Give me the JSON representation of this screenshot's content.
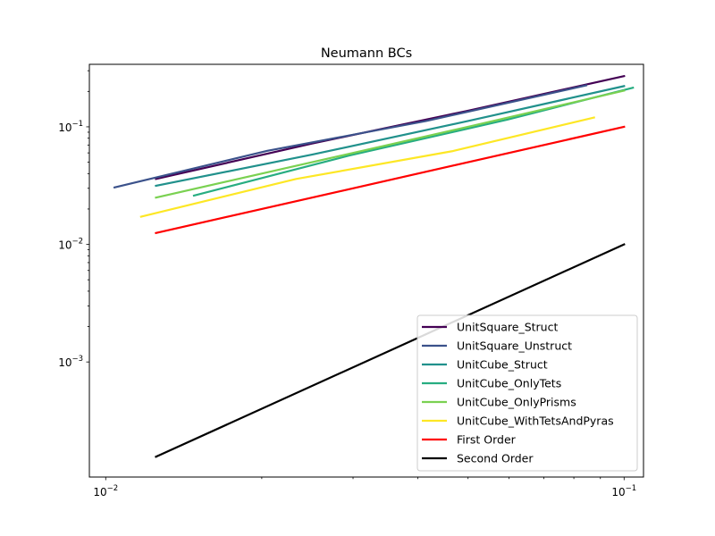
{
  "chart_data": {
    "type": "line",
    "title": "Neumann BCs",
    "xscale": "log",
    "yscale": "log",
    "xlim": [
      0.0093,
      0.109
    ],
    "ylim": [
      0.000105,
      0.34
    ],
    "xlabel": "",
    "ylabel": "",
    "x_major_ticks": [
      {
        "value": 0.01,
        "label_base": "10",
        "label_exp": "−2"
      },
      {
        "value": 0.1,
        "label_base": "10",
        "label_exp": "−1"
      }
    ],
    "y_major_ticks": [
      {
        "value": 0.001,
        "label_base": "10",
        "label_exp": "−3"
      },
      {
        "value": 0.01,
        "label_base": "10",
        "label_exp": "−2"
      },
      {
        "value": 0.1,
        "label_base": "10",
        "label_exp": "−1"
      }
    ],
    "legend_position": "lower-right",
    "series": [
      {
        "name": "UnitSquare_Struct",
        "color": "#440154",
        "x": [
          0.0125,
          0.025,
          0.05,
          0.1
        ],
        "y": [
          0.036,
          0.072,
          0.137,
          0.27
        ]
      },
      {
        "name": "UnitSquare_Unstruct",
        "color": "#3b528b",
        "x": [
          0.0104,
          0.0205,
          0.0415,
          0.0845
        ],
        "y": [
          0.0305,
          0.0625,
          0.112,
          0.225
        ]
      },
      {
        "name": "UnitCube_Struct",
        "color": "#21918c",
        "x": [
          0.0125,
          0.025,
          0.05,
          0.1
        ],
        "y": [
          0.0315,
          0.058,
          0.112,
          0.222
        ]
      },
      {
        "name": "UnitCube_OnlyTets",
        "color": "#27ad81",
        "x": [
          0.0148,
          0.0295,
          0.0595,
          0.104
        ],
        "y": [
          0.026,
          0.057,
          0.115,
          0.215
        ]
      },
      {
        "name": "UnitCube_OnlyPrisms",
        "color": "#7ad151",
        "x": [
          0.0125,
          0.025,
          0.05,
          0.1
        ],
        "y": [
          0.025,
          0.05,
          0.1,
          0.203
        ]
      },
      {
        "name": "UnitCube_WithTetsAndPyras",
        "color": "#fde725",
        "x": [
          0.0117,
          0.0233,
          0.0466,
          0.0875
        ],
        "y": [
          0.0172,
          0.036,
          0.062,
          0.12
        ]
      },
      {
        "name": "First Order",
        "color": "#ff0000",
        "x": [
          0.0125,
          0.1
        ],
        "y": [
          0.0125,
          0.1
        ]
      },
      {
        "name": "Second Order",
        "color": "#000000",
        "x": [
          0.0125,
          0.1
        ],
        "y": [
          0.00015625,
          0.01
        ]
      }
    ]
  }
}
